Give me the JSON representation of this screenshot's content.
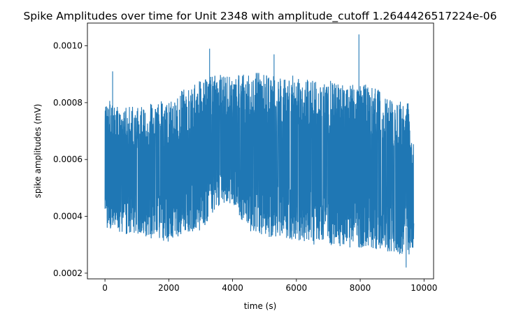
{
  "chart_data": {
    "type": "line",
    "title": "Spike Amplitudes over time for Unit 2348 with amplitude_cutoff 1.2644426517224e-06",
    "xlabel": "time (s)",
    "ylabel": "spike amplitudes (mV)",
    "xlim": [
      -550,
      10300
    ],
    "ylim": [
      0.00018,
      0.00108
    ],
    "xticks": [
      0,
      2000,
      4000,
      6000,
      8000,
      10000
    ],
    "xtick_labels": [
      "0",
      "2000",
      "4000",
      "6000",
      "8000",
      "10000"
    ],
    "yticks": [
      0.0002,
      0.0004,
      0.0006,
      0.0008,
      0.001
    ],
    "ytick_labels": [
      "0.0002",
      "0.0004",
      "0.0006",
      "0.0008",
      "0.0010"
    ],
    "grid": false,
    "series": [
      {
        "color": "#1f77b4",
        "x": [
          0,
          500,
          1000,
          1500,
          2000,
          2500,
          3000,
          3500,
          4000,
          4500,
          5000,
          5500,
          6000,
          6500,
          7000,
          7500,
          8000,
          8500,
          9000,
          9500,
          9680
        ],
        "upper": [
          0.00082,
          0.00078,
          0.00079,
          0.0008,
          0.00081,
          0.00085,
          0.00088,
          0.0009,
          0.00089,
          0.00091,
          0.00092,
          0.0009,
          0.0009,
          0.00088,
          0.00088,
          0.00087,
          0.00087,
          0.00085,
          0.00082,
          0.0008,
          0.00068
        ],
        "lower": [
          0.00036,
          0.00034,
          0.00033,
          0.00032,
          0.00031,
          0.00033,
          0.00035,
          0.00042,
          0.00045,
          0.00034,
          0.00033,
          0.00032,
          0.00031,
          0.0003,
          0.0003,
          0.00029,
          0.00029,
          0.00028,
          0.00027,
          0.00026,
          0.00029
        ],
        "peaks": [
          {
            "x": 240,
            "y": 0.00091
          },
          {
            "x": 3280,
            "y": 0.00099
          },
          {
            "x": 5300,
            "y": 0.00097
          },
          {
            "x": 7960,
            "y": 0.00104
          },
          {
            "x": 9440,
            "y": 0.00022
          }
        ]
      }
    ]
  }
}
